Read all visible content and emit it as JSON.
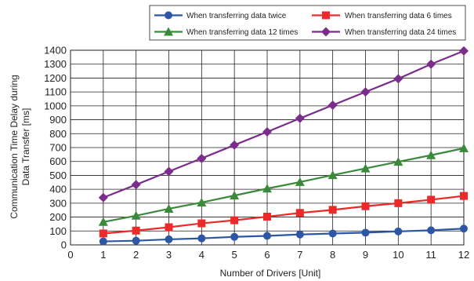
{
  "chart_data": {
    "type": "line",
    "title": "",
    "xlabel": "Number of Drivers [Unit]",
    "ylabel_lines": [
      "Communication Time Delay during",
      "Data Transfer [ms]"
    ],
    "x_ticks": [
      0,
      1,
      2,
      3,
      4,
      5,
      6,
      7,
      8,
      9,
      10,
      11,
      12
    ],
    "y_ticks": [
      0,
      100,
      200,
      300,
      400,
      500,
      600,
      700,
      800,
      900,
      1000,
      1100,
      1200,
      1300,
      1400
    ],
    "xlim": [
      0,
      12
    ],
    "ylim": [
      0,
      1400
    ],
    "grid": true,
    "legend_position": "top-right",
    "x": [
      1,
      2,
      3,
      4,
      5,
      6,
      7,
      8,
      9,
      10,
      11,
      12
    ],
    "series": [
      {
        "name": "When transferring data twice",
        "color": "#2d56a5",
        "marker": "circle",
        "values": [
          25,
          30,
          40,
          47,
          58,
          65,
          75,
          82,
          88,
          97,
          105,
          117
        ]
      },
      {
        "name": "When transferring data 6 times",
        "color": "#ec2a2a",
        "marker": "square",
        "values": [
          82,
          103,
          127,
          155,
          177,
          203,
          230,
          252,
          278,
          300,
          325,
          352
        ]
      },
      {
        "name": "When transferring data 12 times",
        "color": "#3b8a3b",
        "marker": "triangle",
        "values": [
          165,
          210,
          260,
          305,
          355,
          405,
          452,
          502,
          550,
          598,
          645,
          695
        ]
      },
      {
        "name": "When transferring data 24 times",
        "color": "#7b2d8b",
        "marker": "diamond",
        "values": [
          340,
          433,
          528,
          622,
          718,
          813,
          910,
          1005,
          1100,
          1195,
          1300,
          1395
        ]
      }
    ]
  }
}
